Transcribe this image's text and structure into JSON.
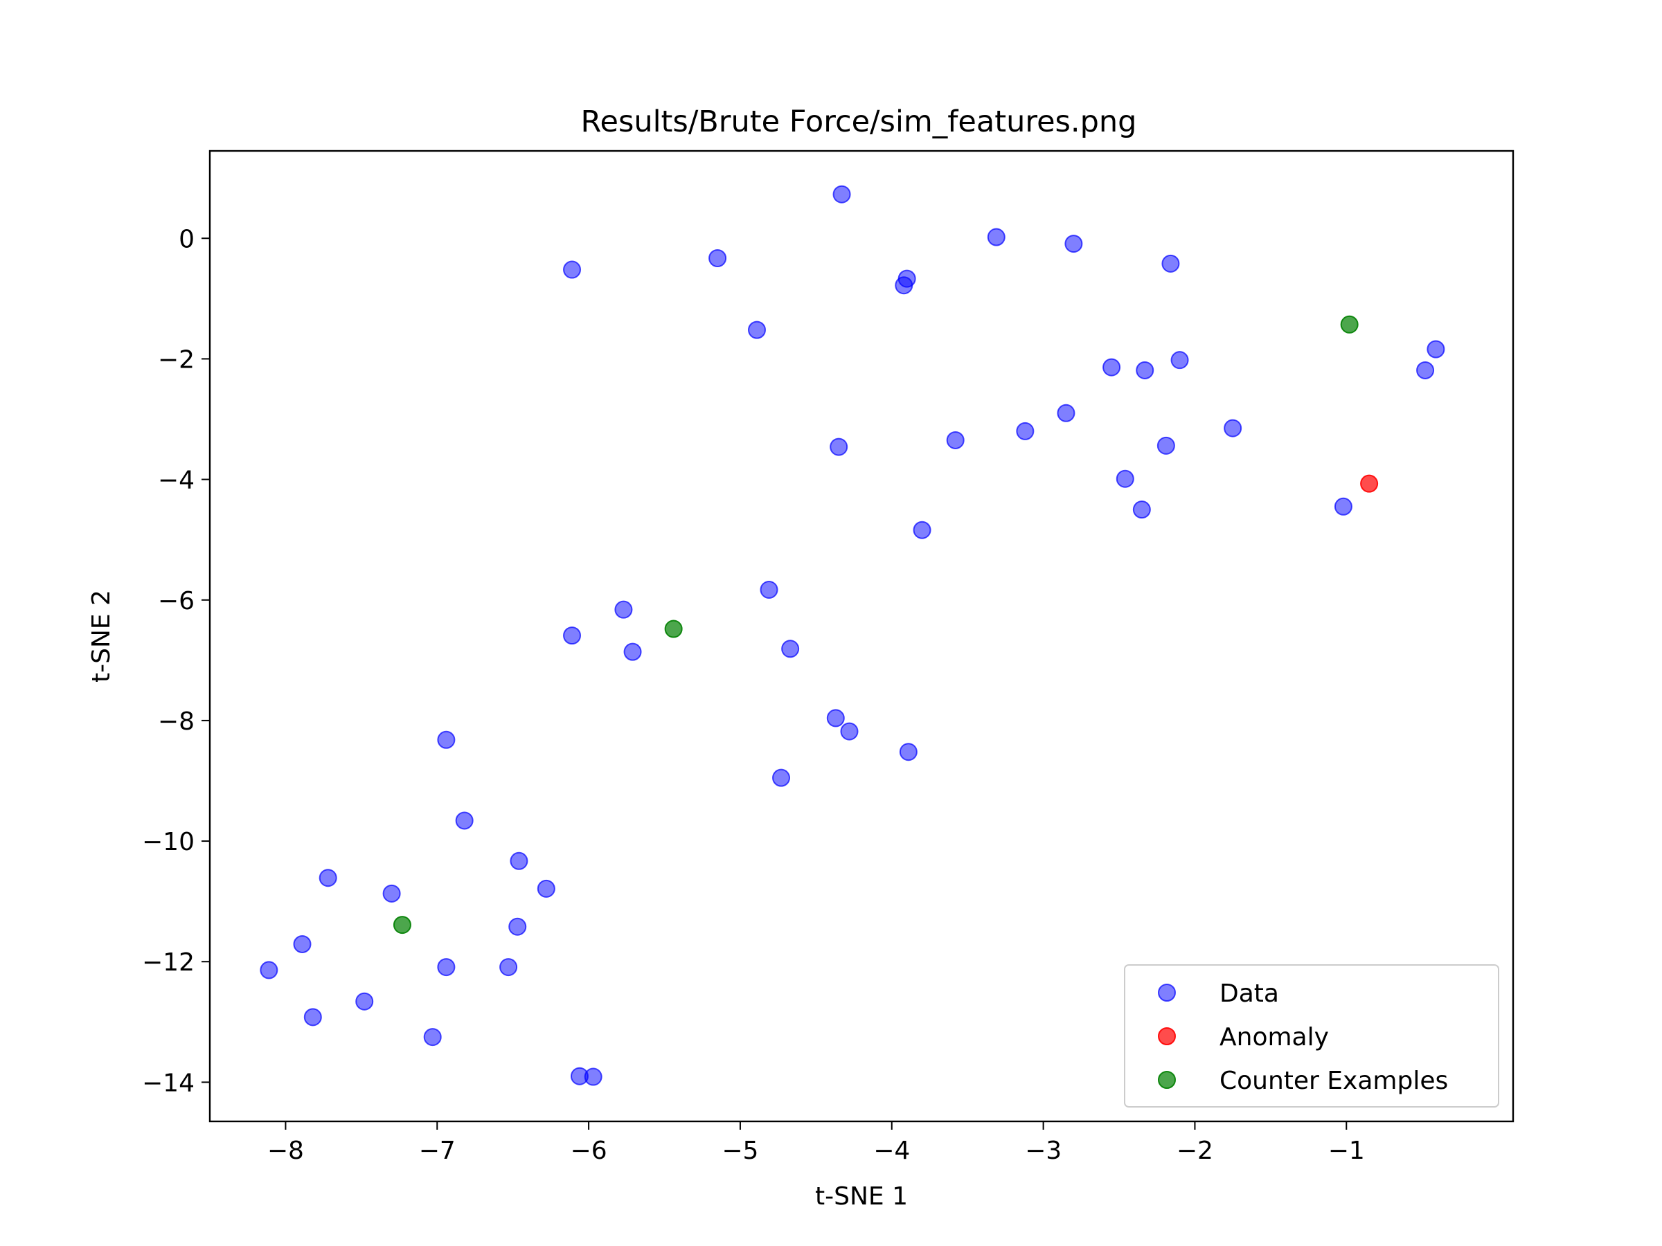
{
  "chart_data": {
    "type": "scatter",
    "title": "Results/Brute Force/sim_features.png",
    "xlabel": "t-SNE 1",
    "ylabel": "t-SNE 2",
    "xlim": [
      -8.5,
      0.1
    ],
    "ylim": [
      -14.65,
      1.45
    ],
    "xticks": [
      -8,
      -7,
      -6,
      -5,
      -4,
      -3,
      -2,
      -1
    ],
    "yticks": [
      0,
      -2,
      -4,
      -6,
      -8,
      -10,
      -12,
      -14
    ],
    "grid": false,
    "legend_position": "lower right",
    "series": [
      {
        "name": "Data",
        "color": "#0000ff",
        "alpha": 0.5,
        "points": [
          [
            -4.33,
            0.73
          ],
          [
            -3.31,
            0.02
          ],
          [
            -2.8,
            -0.09
          ],
          [
            -2.16,
            -0.42
          ],
          [
            -6.11,
            -0.52
          ],
          [
            -5.15,
            -0.33
          ],
          [
            -3.9,
            -0.67
          ],
          [
            -3.92,
            -0.78
          ],
          [
            -4.89,
            -1.52
          ],
          [
            -2.55,
            -2.14
          ],
          [
            -2.33,
            -2.19
          ],
          [
            -2.1,
            -2.02
          ],
          [
            -0.41,
            -1.84
          ],
          [
            -0.48,
            -2.19
          ],
          [
            -2.85,
            -2.9
          ],
          [
            -3.12,
            -3.2
          ],
          [
            -3.58,
            -3.35
          ],
          [
            -4.35,
            -3.46
          ],
          [
            -2.19,
            -3.44
          ],
          [
            -1.75,
            -3.15
          ],
          [
            -2.46,
            -3.99
          ],
          [
            -2.35,
            -4.5
          ],
          [
            -1.02,
            -4.45
          ],
          [
            -3.8,
            -4.84
          ],
          [
            -4.81,
            -5.83
          ],
          [
            -5.77,
            -6.16
          ],
          [
            -6.11,
            -6.59
          ],
          [
            -5.71,
            -6.86
          ],
          [
            -4.67,
            -6.81
          ],
          [
            -4.37,
            -7.96
          ],
          [
            -4.28,
            -8.18
          ],
          [
            -3.89,
            -8.52
          ],
          [
            -4.73,
            -8.95
          ],
          [
            -6.94,
            -8.32
          ],
          [
            -6.82,
            -9.66
          ],
          [
            -6.46,
            -10.33
          ],
          [
            -6.28,
            -10.79
          ],
          [
            -7.72,
            -10.61
          ],
          [
            -7.3,
            -10.87
          ],
          [
            -6.47,
            -11.42
          ],
          [
            -7.89,
            -11.71
          ],
          [
            -6.94,
            -12.09
          ],
          [
            -6.53,
            -12.09
          ],
          [
            -8.11,
            -12.14
          ],
          [
            -7.48,
            -12.66
          ],
          [
            -7.82,
            -12.92
          ],
          [
            -7.03,
            -13.25
          ],
          [
            -6.06,
            -13.9
          ],
          [
            -5.97,
            -13.91
          ]
        ]
      },
      {
        "name": "Anomaly",
        "color": "#ff0000",
        "alpha": 0.7,
        "points": [
          [
            -0.85,
            -4.07
          ]
        ]
      },
      {
        "name": "Counter Examples",
        "color": "#008000",
        "alpha": 0.7,
        "points": [
          [
            -0.98,
            -1.43
          ],
          [
            -5.44,
            -6.48
          ],
          [
            -7.23,
            -11.39
          ]
        ]
      }
    ]
  }
}
